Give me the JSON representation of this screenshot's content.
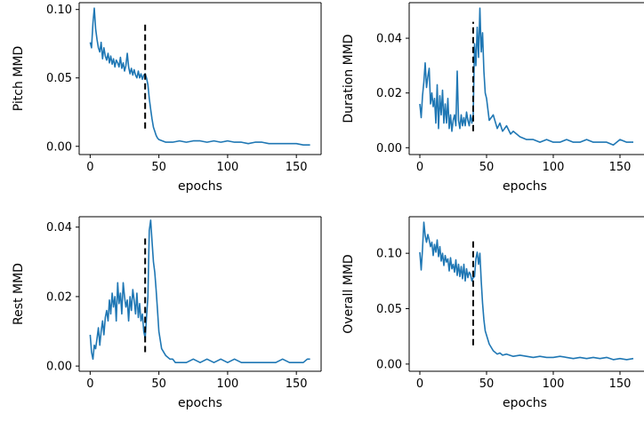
{
  "chart_data": [
    {
      "type": "line",
      "xlabel": "epochs",
      "ylabel": "Pitch MMD",
      "xlim": [
        -8,
        168
      ],
      "ylim": [
        -0.006,
        0.105
      ],
      "xticks": [
        0,
        50,
        100,
        150
      ],
      "yticks": [
        0.0,
        0.05,
        0.1
      ],
      "ytick_labels": [
        "0.00",
        "0.05",
        "0.10"
      ],
      "color": "#1f77b4",
      "vline": {
        "x": 40,
        "y_range": [
          0.013,
          0.09
        ]
      },
      "series": [
        {
          "x": [
            0,
            1,
            2,
            3,
            4,
            5,
            6,
            7,
            8,
            9,
            10,
            11,
            12,
            13,
            14,
            15,
            16,
            17,
            18,
            19,
            20,
            21,
            22,
            23,
            24,
            25,
            26,
            27,
            28,
            29,
            30,
            31,
            32,
            33,
            34,
            35,
            36,
            37,
            38,
            39,
            40,
            41,
            42,
            43,
            44,
            45,
            46,
            47,
            48,
            49,
            50,
            55,
            60,
            65,
            70,
            75,
            80,
            85,
            90,
            95,
            100,
            105,
            110,
            115,
            120,
            125,
            130,
            135,
            140,
            145,
            150,
            155,
            160
          ],
          "values": [
            0.076,
            0.072,
            0.09,
            0.101,
            0.086,
            0.078,
            0.072,
            0.069,
            0.076,
            0.064,
            0.072,
            0.066,
            0.063,
            0.068,
            0.061,
            0.066,
            0.06,
            0.064,
            0.058,
            0.063,
            0.061,
            0.058,
            0.065,
            0.057,
            0.061,
            0.055,
            0.059,
            0.068,
            0.058,
            0.053,
            0.057,
            0.052,
            0.056,
            0.052,
            0.05,
            0.055,
            0.05,
            0.053,
            0.049,
            0.052,
            0.053,
            0.05,
            0.045,
            0.035,
            0.027,
            0.02,
            0.014,
            0.011,
            0.008,
            0.006,
            0.005,
            0.003,
            0.003,
            0.004,
            0.003,
            0.004,
            0.004,
            0.003,
            0.004,
            0.003,
            0.004,
            0.003,
            0.003,
            0.002,
            0.003,
            0.003,
            0.002,
            0.002,
            0.002,
            0.002,
            0.002,
            0.001,
            0.001
          ]
        }
      ]
    },
    {
      "type": "line",
      "xlabel": "epochs",
      "ylabel": "Duration MMD",
      "xlim": [
        -8,
        168
      ],
      "ylim": [
        -0.0025,
        0.053
      ],
      "xticks": [
        0,
        50,
        100,
        150
      ],
      "yticks": [
        0.0,
        0.02,
        0.04
      ],
      "ytick_labels": [
        "0.00",
        "0.02",
        "0.04"
      ],
      "color": "#1f77b4",
      "vline": {
        "x": 40,
        "y_range": [
          0.006,
          0.046
        ]
      },
      "series": [
        {
          "x": [
            0,
            1,
            2,
            3,
            4,
            5,
            6,
            7,
            8,
            9,
            10,
            11,
            12,
            13,
            14,
            15,
            16,
            17,
            18,
            19,
            20,
            21,
            22,
            23,
            24,
            25,
            26,
            27,
            28,
            29,
            30,
            31,
            32,
            33,
            34,
            35,
            36,
            37,
            38,
            39,
            40,
            41,
            42,
            43,
            44,
            45,
            46,
            47,
            48,
            49,
            50,
            52,
            55,
            58,
            60,
            62,
            65,
            68,
            70,
            75,
            80,
            85,
            90,
            95,
            100,
            105,
            110,
            115,
            120,
            125,
            130,
            135,
            140,
            145,
            150,
            155,
            160
          ],
          "values": [
            0.016,
            0.011,
            0.019,
            0.024,
            0.031,
            0.022,
            0.026,
            0.029,
            0.016,
            0.02,
            0.015,
            0.018,
            0.009,
            0.023,
            0.007,
            0.019,
            0.012,
            0.021,
            0.009,
            0.016,
            0.009,
            0.018,
            0.007,
            0.012,
            0.006,
            0.01,
            0.012,
            0.008,
            0.028,
            0.01,
            0.007,
            0.012,
            0.008,
            0.011,
            0.008,
            0.013,
            0.01,
            0.008,
            0.012,
            0.009,
            0.012,
            0.038,
            0.03,
            0.044,
            0.033,
            0.051,
            0.035,
            0.042,
            0.028,
            0.02,
            0.018,
            0.01,
            0.012,
            0.007,
            0.009,
            0.006,
            0.008,
            0.005,
            0.006,
            0.004,
            0.003,
            0.003,
            0.002,
            0.003,
            0.002,
            0.002,
            0.003,
            0.002,
            0.002,
            0.003,
            0.002,
            0.002,
            0.002,
            0.001,
            0.003,
            0.002,
            0.002
          ]
        }
      ]
    },
    {
      "type": "line",
      "xlabel": "epochs",
      "ylabel": "Rest MMD",
      "xlim": [
        -8,
        168
      ],
      "ylim": [
        -0.0015,
        0.043
      ],
      "xticks": [
        0,
        50,
        100,
        150
      ],
      "yticks": [
        0.0,
        0.02,
        0.04
      ],
      "ytick_labels": [
        "0.00",
        "0.02",
        "0.04"
      ],
      "color": "#1f77b4",
      "vline": {
        "x": 40,
        "y_range": [
          0.004,
          0.037
        ]
      },
      "series": [
        {
          "x": [
            0,
            1,
            2,
            3,
            4,
            5,
            6,
            7,
            8,
            9,
            10,
            11,
            12,
            13,
            14,
            15,
            16,
            17,
            18,
            19,
            20,
            21,
            22,
            23,
            24,
            25,
            26,
            27,
            28,
            29,
            30,
            31,
            32,
            33,
            34,
            35,
            36,
            37,
            38,
            39,
            40,
            41,
            42,
            43,
            44,
            45,
            46,
            47,
            48,
            49,
            50,
            52,
            55,
            58,
            60,
            62,
            65,
            70,
            75,
            80,
            85,
            90,
            95,
            100,
            105,
            110,
            115,
            120,
            125,
            130,
            135,
            140,
            145,
            150,
            155,
            158,
            160
          ],
          "values": [
            0.009,
            0.004,
            0.002,
            0.006,
            0.005,
            0.008,
            0.011,
            0.006,
            0.01,
            0.013,
            0.009,
            0.014,
            0.016,
            0.013,
            0.019,
            0.015,
            0.021,
            0.017,
            0.02,
            0.013,
            0.024,
            0.018,
            0.021,
            0.015,
            0.024,
            0.02,
            0.017,
            0.019,
            0.013,
            0.02,
            0.016,
            0.022,
            0.019,
            0.015,
            0.021,
            0.014,
            0.018,
            0.013,
            0.015,
            0.01,
            0.008,
            0.014,
            0.02,
            0.039,
            0.042,
            0.036,
            0.03,
            0.027,
            0.022,
            0.016,
            0.01,
            0.005,
            0.003,
            0.002,
            0.002,
            0.001,
            0.001,
            0.001,
            0.002,
            0.001,
            0.002,
            0.001,
            0.002,
            0.001,
            0.002,
            0.001,
            0.001,
            0.001,
            0.001,
            0.001,
            0.001,
            0.002,
            0.001,
            0.001,
            0.001,
            0.002,
            0.002
          ]
        }
      ]
    },
    {
      "type": "line",
      "xlabel": "epochs",
      "ylabel": "Overall MMD",
      "xlim": [
        -8,
        168
      ],
      "ylim": [
        -0.0065,
        0.133
      ],
      "xticks": [
        0,
        50,
        100,
        150
      ],
      "yticks": [
        0.0,
        0.05,
        0.1
      ],
      "ytick_labels": [
        "0.00",
        "0.05",
        "0.10"
      ],
      "color": "#1f77b4",
      "vline": {
        "x": 40,
        "y_range": [
          0.017,
          0.112
        ]
      },
      "series": [
        {
          "x": [
            0,
            1,
            2,
            3,
            4,
            5,
            6,
            7,
            8,
            9,
            10,
            11,
            12,
            13,
            14,
            15,
            16,
            17,
            18,
            19,
            20,
            21,
            22,
            23,
            24,
            25,
            26,
            27,
            28,
            29,
            30,
            31,
            32,
            33,
            34,
            35,
            36,
            37,
            38,
            39,
            40,
            41,
            42,
            43,
            44,
            45,
            46,
            47,
            48,
            49,
            50,
            52,
            55,
            58,
            60,
            62,
            65,
            70,
            75,
            80,
            85,
            90,
            95,
            100,
            105,
            110,
            115,
            120,
            125,
            130,
            135,
            140,
            145,
            150,
            155,
            160
          ],
          "values": [
            0.101,
            0.085,
            0.104,
            0.128,
            0.116,
            0.11,
            0.117,
            0.112,
            0.106,
            0.11,
            0.098,
            0.108,
            0.101,
            0.112,
            0.097,
            0.106,
            0.093,
            0.1,
            0.089,
            0.098,
            0.092,
            0.095,
            0.084,
            0.096,
            0.086,
            0.09,
            0.083,
            0.094,
            0.08,
            0.09,
            0.079,
            0.088,
            0.077,
            0.09,
            0.075,
            0.086,
            0.078,
            0.083,
            0.081,
            0.075,
            0.078,
            0.079,
            0.095,
            0.101,
            0.09,
            0.1,
            0.075,
            0.055,
            0.04,
            0.03,
            0.026,
            0.018,
            0.012,
            0.009,
            0.01,
            0.008,
            0.009,
            0.007,
            0.008,
            0.007,
            0.006,
            0.007,
            0.006,
            0.006,
            0.007,
            0.006,
            0.005,
            0.006,
            0.005,
            0.006,
            0.005,
            0.006,
            0.004,
            0.005,
            0.004,
            0.005
          ]
        }
      ]
    }
  ]
}
